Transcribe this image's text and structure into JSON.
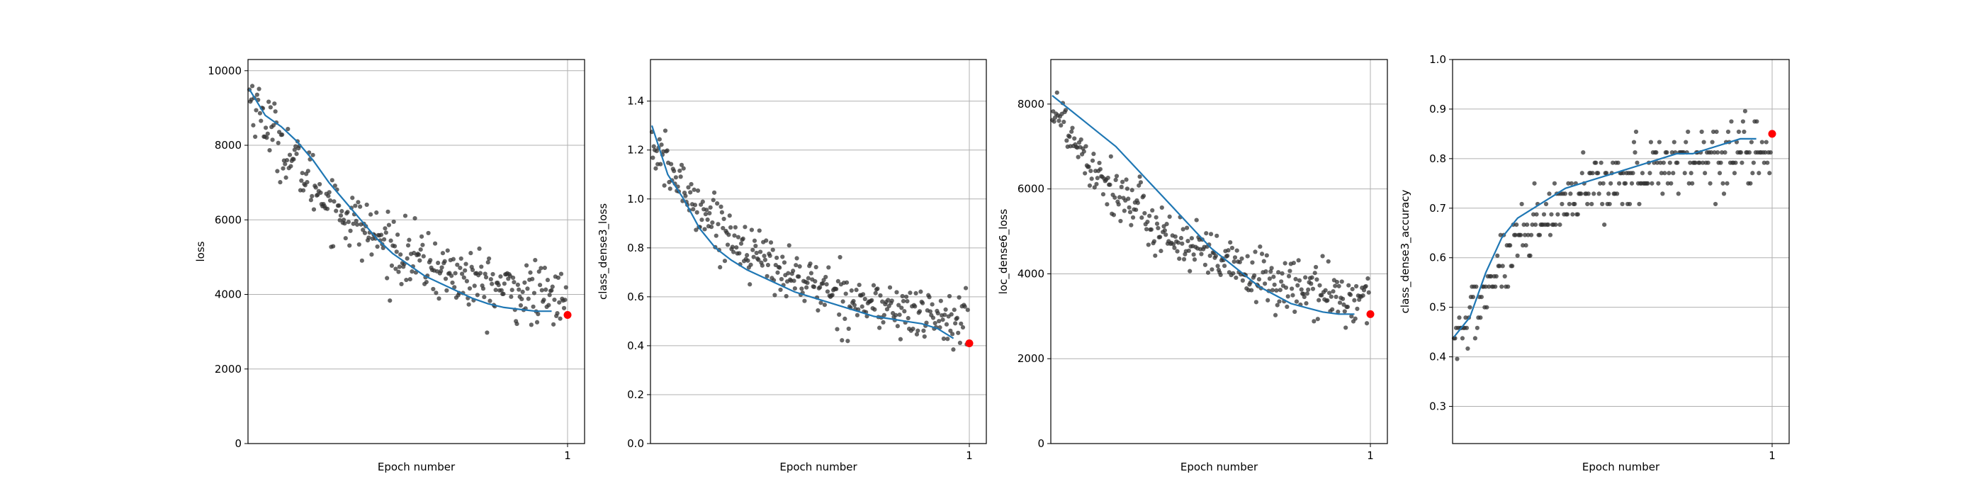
{
  "chart_data": [
    {
      "type": "scatter",
      "xlabel": "Epoch number",
      "ylabel": "loss",
      "xticks": [
        "1"
      ],
      "yticks": [
        0,
        2000,
        4000,
        6000,
        8000,
        10000
      ],
      "ylim": [
        0,
        10300
      ],
      "grid": true,
      "points": {
        "count": 330,
        "start": 9400,
        "end": 3400,
        "noise": 420,
        "shape": "decay"
      },
      "trend": [
        [
          0.0,
          9500
        ],
        [
          0.05,
          8800
        ],
        [
          0.1,
          8500
        ],
        [
          0.15,
          8100
        ],
        [
          0.2,
          7600
        ],
        [
          0.25,
          7000
        ],
        [
          0.3,
          6500
        ],
        [
          0.35,
          6000
        ],
        [
          0.4,
          5500
        ],
        [
          0.45,
          5100
        ],
        [
          0.5,
          4800
        ],
        [
          0.55,
          4500
        ],
        [
          0.6,
          4300
        ],
        [
          0.65,
          4100
        ],
        [
          0.7,
          3900
        ],
        [
          0.75,
          3750
        ],
        [
          0.8,
          3650
        ],
        [
          0.85,
          3600
        ],
        [
          0.9,
          3550
        ],
        [
          0.95,
          3550
        ]
      ],
      "last": {
        "x": 1.0,
        "y": 3450
      },
      "colors": {
        "points": "#333333",
        "trend": "#1f77b4",
        "last": "#ff0000"
      }
    },
    {
      "type": "scatter",
      "xlabel": "Epoch number",
      "ylabel": "class_dense3_loss",
      "xticks": [
        "1"
      ],
      "yticks": [
        0.0,
        0.2,
        0.4,
        0.6,
        0.8,
        1.0,
        1.2,
        1.4
      ],
      "ylim": [
        0,
        1.57
      ],
      "grid": true,
      "points": {
        "count": 330,
        "start": 1.22,
        "end": 0.44,
        "noise": 0.055,
        "shape": "decay"
      },
      "trend": [
        [
          0.0,
          1.3
        ],
        [
          0.05,
          1.1
        ],
        [
          0.1,
          1.0
        ],
        [
          0.15,
          0.88
        ],
        [
          0.2,
          0.8
        ],
        [
          0.25,
          0.75
        ],
        [
          0.3,
          0.71
        ],
        [
          0.35,
          0.68
        ],
        [
          0.4,
          0.65
        ],
        [
          0.45,
          0.62
        ],
        [
          0.5,
          0.6
        ],
        [
          0.55,
          0.58
        ],
        [
          0.6,
          0.56
        ],
        [
          0.65,
          0.54
        ],
        [
          0.7,
          0.52
        ],
        [
          0.75,
          0.51
        ],
        [
          0.8,
          0.5
        ],
        [
          0.85,
          0.49
        ],
        [
          0.9,
          0.47
        ],
        [
          0.95,
          0.43
        ]
      ],
      "last": {
        "x": 1.0,
        "y": 0.41
      },
      "colors": {
        "points": "#333333",
        "trend": "#1f77b4",
        "last": "#ff0000"
      }
    },
    {
      "type": "scatter",
      "xlabel": "Epoch number",
      "ylabel": "loc_dense6_loss",
      "xticks": [
        "1"
      ],
      "yticks": [
        0,
        2000,
        4000,
        6000,
        8000
      ],
      "ylim": [
        0,
        9050
      ],
      "grid": true,
      "points": {
        "count": 330,
        "start": 8000,
        "end": 3000,
        "noise": 330,
        "shape": "decay"
      },
      "trend": [
        [
          0.0,
          8200
        ],
        [
          0.05,
          7900
        ],
        [
          0.1,
          7600
        ],
        [
          0.15,
          7300
        ],
        [
          0.2,
          7000
        ],
        [
          0.25,
          6600
        ],
        [
          0.3,
          6200
        ],
        [
          0.35,
          5800
        ],
        [
          0.4,
          5400
        ],
        [
          0.45,
          5000
        ],
        [
          0.5,
          4600
        ],
        [
          0.55,
          4300
        ],
        [
          0.6,
          4000
        ],
        [
          0.65,
          3700
        ],
        [
          0.7,
          3500
        ],
        [
          0.75,
          3300
        ],
        [
          0.8,
          3200
        ],
        [
          0.85,
          3100
        ],
        [
          0.9,
          3050
        ],
        [
          0.95,
          3050
        ]
      ],
      "last": {
        "x": 1.0,
        "y": 3050
      },
      "colors": {
        "points": "#333333",
        "trend": "#1f77b4",
        "last": "#ff0000"
      }
    },
    {
      "type": "scatter",
      "xlabel": "Epoch number",
      "ylabel": "class_dense3_accuracy",
      "xticks": [
        "1"
      ],
      "yticks": [
        0.3,
        0.4,
        0.5,
        0.6,
        0.7,
        0.8,
        0.9,
        1.0
      ],
      "ylim": [
        0.225,
        1.0
      ],
      "grid": true,
      "points": {
        "count": 300,
        "start": 0.42,
        "end": 0.84,
        "noise": 0.033,
        "shape": "growth"
      },
      "trend": [
        [
          0.0,
          0.44
        ],
        [
          0.05,
          0.48
        ],
        [
          0.1,
          0.57
        ],
        [
          0.15,
          0.64
        ],
        [
          0.2,
          0.68
        ],
        [
          0.25,
          0.7
        ],
        [
          0.3,
          0.72
        ],
        [
          0.35,
          0.74
        ],
        [
          0.4,
          0.75
        ],
        [
          0.45,
          0.76
        ],
        [
          0.5,
          0.77
        ],
        [
          0.55,
          0.78
        ],
        [
          0.6,
          0.79
        ],
        [
          0.65,
          0.8
        ],
        [
          0.7,
          0.81
        ],
        [
          0.75,
          0.81
        ],
        [
          0.8,
          0.82
        ],
        [
          0.85,
          0.83
        ],
        [
          0.9,
          0.84
        ],
        [
          0.95,
          0.84
        ]
      ],
      "last": {
        "x": 1.0,
        "y": 0.85
      },
      "colors": {
        "points": "#333333",
        "trend": "#1f77b4",
        "last": "#ff0000"
      }
    }
  ]
}
